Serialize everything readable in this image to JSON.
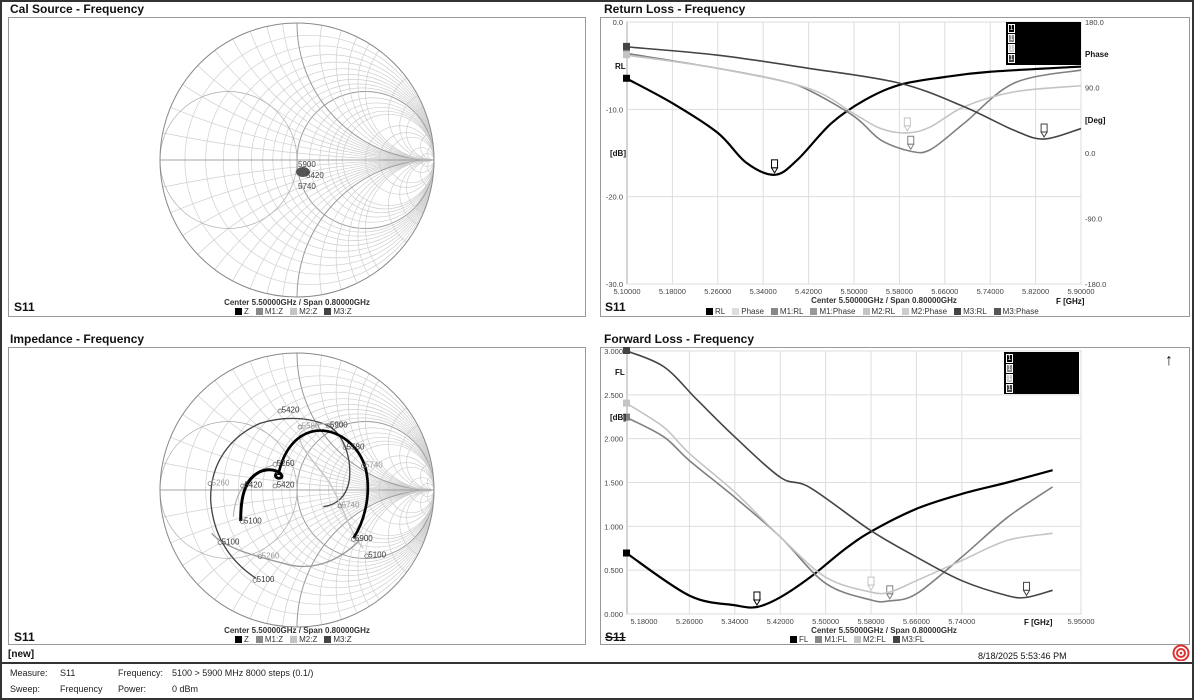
{
  "panels": {
    "cal_source": {
      "title": "Cal Source - Frequency",
      "trace": "S11",
      "center_span": "Center 5.50000GHz / Span 0.80000GHz",
      "legend": [
        {
          "label": "Z",
          "color": "#000000"
        },
        {
          "label": "M1:Z",
          "color": "#888888"
        },
        {
          "label": "M2:Z",
          "color": "#c4c4c4"
        },
        {
          "label": "M3:Z",
          "color": "#444444"
        }
      ],
      "point_labels": [
        "5900",
        "5420",
        "5740"
      ]
    },
    "impedance": {
      "title": "Impedance - Frequency",
      "trace": "S11",
      "center_span": "Center 5.50000GHz / Span 0.80000GHz",
      "legend": [
        {
          "label": "Z",
          "color": "#000000"
        },
        {
          "label": "M1:Z",
          "color": "#888888"
        },
        {
          "label": "M2:Z",
          "color": "#c4c4c4"
        },
        {
          "label": "M3:Z",
          "color": "#444444"
        }
      ],
      "point_labels": [
        "5420",
        "5580",
        "5900",
        "5580",
        "5740",
        "5260",
        "5420",
        "5260",
        "5420",
        "5100",
        "5740",
        "5900",
        "5100",
        "5260",
        "5100",
        "5100"
      ]
    },
    "return_loss": {
      "title": "Return Loss - Frequency",
      "trace": "S11",
      "center_span": "Center 5.50000GHz / Span 0.80000GHz",
      "left_label": "RL",
      "left_unit": "[dB]",
      "right_label": "Phase",
      "right_unit": "[Deg]",
      "x_unit": "F [GHz]",
      "legend": [
        {
          "label": "RL",
          "color": "#000000"
        },
        {
          "label": "Phase",
          "color": "#dddddd"
        },
        {
          "label": "M1:RL",
          "color": "#888888"
        },
        {
          "label": "M1:Phase",
          "color": "#999999"
        },
        {
          "label": "M2:RL",
          "color": "#c4c4c4"
        },
        {
          "label": "M2:Phase",
          "color": "#cccccc"
        },
        {
          "label": "M3:RL",
          "color": "#444444"
        },
        {
          "label": "M3:Phase",
          "color": "#555555"
        }
      ],
      "marker_box": [
        "1",
        "1",
        "1",
        "1"
      ]
    },
    "forward_loss": {
      "title": "Forward Loss - Frequency",
      "trace": "S11",
      "center_span": "Center 5.55000GHz / Span 0.80000GHz",
      "left_label": "FL",
      "left_unit": "[dB]",
      "x_unit": "F [GHz]",
      "legend": [
        {
          "label": "FL",
          "color": "#000000"
        },
        {
          "label": "M1:FL",
          "color": "#888888"
        },
        {
          "label": "M2:FL",
          "color": "#c4c4c4"
        },
        {
          "label": "M3:FL",
          "color": "#444444"
        }
      ],
      "marker_box": [
        "1",
        "1",
        "1",
        "1"
      ]
    }
  },
  "chart_data": [
    {
      "type": "line",
      "title": "Return Loss - Frequency",
      "xlabel": "F [GHz]",
      "ylabel": "RL [dB]",
      "y2label": "Phase [Deg]",
      "xlim": [
        5.1,
        5.9
      ],
      "ylim": [
        -30,
        0
      ],
      "y2lim": [
        -180,
        180
      ],
      "xticks": [
        "5.10000",
        "5.18000",
        "5.26000",
        "5.34000",
        "5.42000",
        "5.50000",
        "5.58000",
        "5.66000",
        "5.74000",
        "5.82000",
        "5.90000"
      ],
      "yticks": [
        "0.0",
        "-10.0",
        "-20.0",
        "-30.0"
      ],
      "y2ticks": [
        "180.0",
        "90.0",
        "0.0",
        "-90.0",
        "-180.0"
      ],
      "grid": true,
      "series": [
        {
          "name": "RL",
          "color": "#000000",
          "x": [
            5.1,
            5.18,
            5.26,
            5.31,
            5.36,
            5.4,
            5.46,
            5.52,
            5.58,
            5.66,
            5.74,
            5.9
          ],
          "y": [
            -6.5,
            -9.3,
            -12.7,
            -16.1,
            -17.5,
            -15.8,
            -11.6,
            -8.9,
            -7.2,
            -6.3,
            -5.7,
            -5.1
          ]
        },
        {
          "name": "M1:RL",
          "color": "#808080",
          "x": [
            5.1,
            5.26,
            5.37,
            5.42,
            5.5,
            5.547,
            5.6,
            5.635,
            5.694,
            5.782,
            5.9
          ],
          "y": [
            -3.6,
            -5.3,
            -6.7,
            -7.8,
            -10.8,
            -13.5,
            -14.8,
            -14.6,
            -11.6,
            -7.0,
            -5.5
          ]
        },
        {
          "name": "M2:RL",
          "color": "#c4c4c4",
          "x": [
            5.1,
            5.26,
            5.42,
            5.5,
            5.547,
            5.594,
            5.635,
            5.694,
            5.782,
            5.9
          ],
          "y": [
            -3.8,
            -5.3,
            -7.6,
            -10.5,
            -12.2,
            -12.7,
            -12.0,
            -9.7,
            -8.0,
            -7.3
          ]
        },
        {
          "name": "M3:RL",
          "color": "#444444",
          "x": [
            5.1,
            5.26,
            5.42,
            5.58,
            5.694,
            5.782,
            5.835,
            5.9
          ],
          "y": [
            -2.85,
            -3.8,
            -5.3,
            -7.0,
            -9.7,
            -12.4,
            -13.4,
            -12.2
          ]
        }
      ]
    },
    {
      "type": "line",
      "title": "Forward Loss - Frequency",
      "xlabel": "F [GHz]",
      "ylabel": "FL [dB]",
      "xlim": [
        5.15,
        5.95
      ],
      "ylim": [
        0,
        3
      ],
      "xticks": [
        "5.18000",
        "5.26000",
        "5.34000",
        "5.42000",
        "5.50000",
        "5.58000",
        "5.66000",
        "5.74000",
        "5.95000"
      ],
      "yticks": [
        "3.000",
        "2.500",
        "2.000",
        "1.500",
        "1.000",
        "0.500",
        "0.000"
      ],
      "grid": true,
      "series": [
        {
          "name": "FL",
          "color": "#000000",
          "x": [
            5.15,
            5.26,
            5.34,
            5.379,
            5.42,
            5.473,
            5.532,
            5.58,
            5.66,
            5.74,
            5.82,
            5.9
          ],
          "y": [
            0.69,
            0.21,
            0.1,
            0.08,
            0.19,
            0.42,
            0.73,
            0.94,
            1.2,
            1.37,
            1.5,
            1.64
          ]
        },
        {
          "name": "M1:FL",
          "color": "#808080",
          "x": [
            5.15,
            5.215,
            5.26,
            5.34,
            5.42,
            5.5,
            5.58,
            5.613,
            5.66,
            5.74,
            5.82,
            5.9
          ],
          "y": [
            2.24,
            2.02,
            1.75,
            1.33,
            0.88,
            0.35,
            0.16,
            0.15,
            0.23,
            0.65,
            1.1,
            1.45
          ]
        },
        {
          "name": "M2:FL",
          "color": "#c4c4c4",
          "x": [
            5.15,
            5.215,
            5.26,
            5.34,
            5.42,
            5.5,
            5.58,
            5.613,
            5.66,
            5.74,
            5.82,
            5.9
          ],
          "y": [
            2.4,
            2.13,
            1.83,
            1.39,
            0.88,
            0.42,
            0.25,
            0.25,
            0.38,
            0.61,
            0.84,
            0.92
          ]
        },
        {
          "name": "M3:FL",
          "color": "#444444",
          "x": [
            5.15,
            5.215,
            5.274,
            5.34,
            5.42,
            5.473,
            5.58,
            5.66,
            5.74,
            5.82,
            5.854,
            5.9
          ],
          "y": [
            3.0,
            2.82,
            2.44,
            2.02,
            1.56,
            1.44,
            0.95,
            0.65,
            0.38,
            0.21,
            0.19,
            0.27
          ]
        }
      ]
    }
  ],
  "footer": {
    "file": "[new]",
    "timestamp": "8/18/2025 5:53:46 PM"
  },
  "status": {
    "measure_label": "Measure:",
    "measure_value": "S11",
    "frequency_label": "Frequency:",
    "frequency_value": "5100 > 5900 MHz 8000 steps (0.1/)",
    "sweep_label": "Sweep:",
    "sweep_value": "Frequency",
    "power_label": "Power:",
    "power_value": "0 dBm"
  }
}
